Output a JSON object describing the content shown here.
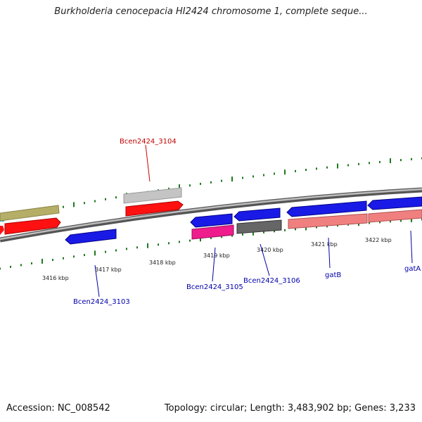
{
  "title": "Burkholderia cenocepacia HI2424 chromosome 1, complete seque...",
  "footer": {
    "accession": "Accession: NC_008542",
    "topology": "Topology: circular; Length: 3,483,902 bp; Genes: 3,233"
  },
  "colors": {
    "backbone": "#8a8a8a",
    "tick": "#1d7a1d",
    "red_label": "#c00000",
    "blue_label": "#0000aa"
  },
  "scale_labels": [
    "3416 kbp",
    "3417 kbp",
    "3418 kbp",
    "3419 kbp",
    "3420 kbp",
    "3421 kbp",
    "3422 kbp"
  ],
  "gene_labels": [
    "Bcen2424_3104",
    "Bcen2424_3103",
    "Bcen2424_3105",
    "Bcen2424_3106",
    "gatB",
    "gatA"
  ]
}
